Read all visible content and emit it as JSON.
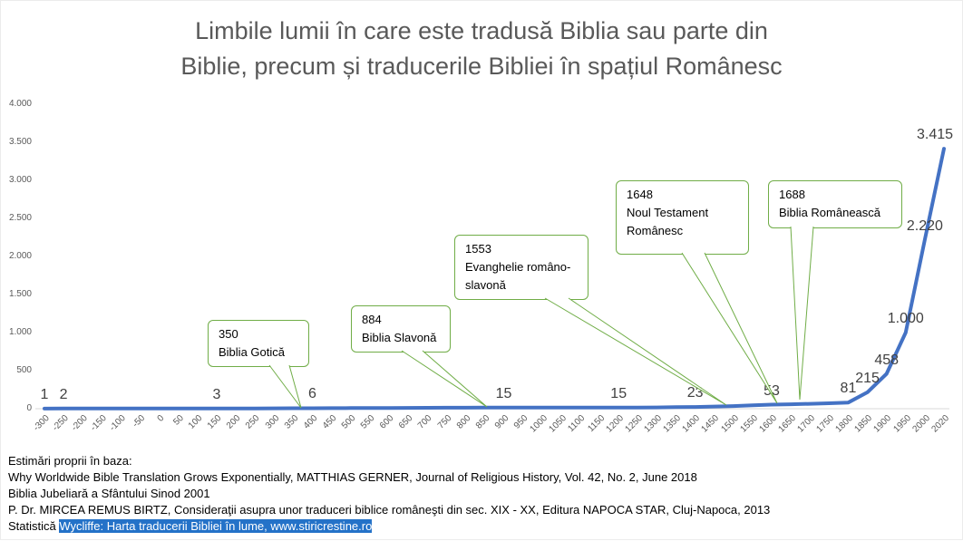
{
  "title": {
    "line1": "Limbile lumii în care este tradusă Biblia sau parte din",
    "line2": "Biblie, precum și traducerile Bibliei în spațiul Românesc"
  },
  "chart_data": {
    "type": "line",
    "title": "Limbile lumii în care este tradusă Biblia sau parte din Biblie, precum și traducerile Bibliei în spațiul Românesc",
    "categories": [
      "-300",
      "-250",
      "-200",
      "-150",
      "-100",
      "-50",
      "0",
      "50",
      "100",
      "150",
      "200",
      "250",
      "300",
      "350",
      "400",
      "450",
      "500",
      "550",
      "600",
      "650",
      "700",
      "750",
      "800",
      "850",
      "900",
      "950",
      "1000",
      "1050",
      "1100",
      "1150",
      "1200",
      "1250",
      "1300",
      "1350",
      "1400",
      "1450",
      "1500",
      "1550",
      "1600",
      "1650",
      "1700",
      "1750",
      "1800",
      "1850",
      "1900",
      "1950",
      "2000",
      "2020"
    ],
    "values": [
      1,
      2,
      2,
      2,
      2,
      2,
      2,
      3,
      3,
      3,
      3,
      4,
      5,
      6,
      6,
      7,
      8,
      9,
      10,
      11,
      12,
      13,
      13,
      14,
      15,
      15,
      15,
      15,
      15,
      15,
      15,
      15,
      17,
      20,
      23,
      28,
      35,
      45,
      53,
      58,
      64,
      72,
      81,
      215,
      458,
      1000,
      2220,
      3415
    ],
    "ylim": [
      0,
      4000
    ],
    "y_ticks": [
      {
        "value": 0,
        "label": "0"
      },
      {
        "value": 500,
        "label": "500"
      },
      {
        "value": 1000,
        "label": "1.000"
      },
      {
        "value": 1500,
        "label": "1.500"
      },
      {
        "value": 2000,
        "label": "2.000"
      },
      {
        "value": 2500,
        "label": "2.500"
      },
      {
        "value": 3000,
        "label": "3.000"
      },
      {
        "value": 3500,
        "label": "3.500"
      },
      {
        "value": 4000,
        "label": "4.000"
      }
    ],
    "grid": false,
    "legend": "none",
    "series_color": "#4472C4",
    "data_labels": [
      {
        "category": "-300",
        "text": "1"
      },
      {
        "category": "-250",
        "text": "2"
      },
      {
        "category": "150",
        "text": "3"
      },
      {
        "category": "400",
        "text": "6"
      },
      {
        "category": "900",
        "text": "15"
      },
      {
        "category": "1200",
        "text": "15"
      },
      {
        "category": "1400",
        "text": "23"
      },
      {
        "category": "1600",
        "text": "53"
      },
      {
        "category": "1800",
        "text": "81"
      },
      {
        "category": "1850",
        "text": "215"
      },
      {
        "category": "1900",
        "text": "458"
      },
      {
        "category": "1950",
        "text": "1.000"
      },
      {
        "category": "2000",
        "text": "2.220"
      },
      {
        "category": "2020",
        "text": "3.415"
      }
    ],
    "annotations": [
      {
        "year": "350",
        "label": "Biblia Gotică"
      },
      {
        "year": "884",
        "label": "Biblia Slavonă"
      },
      {
        "year": "1553",
        "label": "Evanghelie româno-slavonă"
      },
      {
        "year": "1648",
        "label": "Noul Testament Românesc"
      },
      {
        "year": "1688",
        "label": "Biblia Românească"
      }
    ]
  },
  "footer": {
    "lines": [
      "Estimări proprii în baza:",
      "Why Worldwide Bible Translation Grows Exponentially, MATTHIAS GERNER, Journal of Religious History, Vol. 42, No. 2, June 2018",
      "Biblia Jubeliară a Sfântului Sinod 2001",
      "P. Dr. MIRCEA REMUS BIRTZ, Consideraţii asupra unor traduceri biblice româneşti din sec. XIX - XX, Editura NAPOCA STAR, Cluj-Napoca, 2013"
    ],
    "last_line": {
      "prefix": "Statistică ",
      "highlighted": "Wycliffe: Harta traducerii Bibliei în lume, www.stiricrestine.ro"
    }
  },
  "colors": {
    "series_line": "#4472C4",
    "callout_border": "#70AD47",
    "highlight_background": "#2472C8",
    "title_text": "#595959",
    "axis_text": "#595959",
    "data_label_text": "#404040"
  }
}
